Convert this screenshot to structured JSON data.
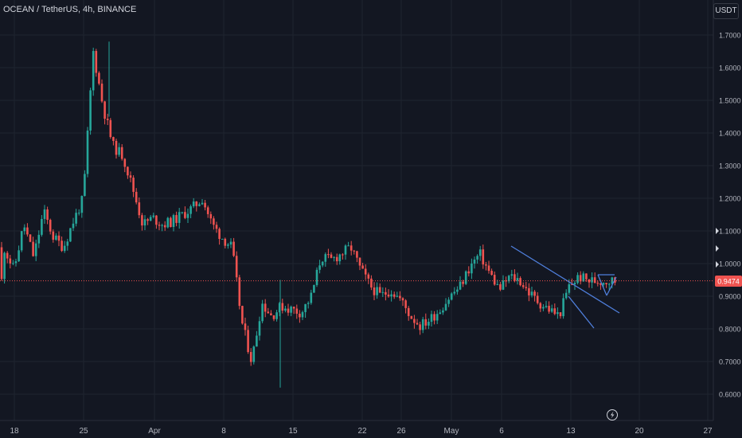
{
  "header": {
    "title": "OCEAN / TetherUS, 4h, BINANCE"
  },
  "currency_button": "USDT",
  "price_label": "0.9474",
  "colors": {
    "up": "#26a69a",
    "down": "#ef5350",
    "trendline": "#4f7fdc",
    "price_line": "#ef5350",
    "grid": "#1f2430"
  },
  "chart_data": {
    "type": "candlestick",
    "title": "OCEAN / TetherUS, 4h, BINANCE",
    "xlabel": "",
    "ylabel": "",
    "ylim": [
      0.55,
      1.78
    ],
    "y_ticks": [
      "0.6000",
      "0.7000",
      "0.8000",
      "0.9000",
      "1.0000",
      "1.1000",
      "1.2000",
      "1.3000",
      "1.4000",
      "1.5000",
      "1.6000",
      "1.7000"
    ],
    "x_ticks": [
      "18",
      "25",
      "Apr",
      "8",
      "15",
      "22",
      "26",
      "May",
      "6",
      "13",
      "20",
      "27"
    ],
    "last_price": 0.9474,
    "price_path": [
      [
        "Mar 18",
        1.05
      ],
      [
        "Mar 19",
        0.98
      ],
      [
        "Mar 20",
        1.12
      ],
      [
        "Mar 21",
        1.02
      ],
      [
        "Mar 22",
        1.16
      ],
      [
        "Mar 23",
        1.08
      ],
      [
        "Mar 24",
        1.05
      ],
      [
        "Mar 25",
        1.13
      ],
      [
        "Mar 26",
        1.2
      ],
      [
        "Mar 27",
        1.65
      ],
      [
        "Mar 28",
        1.48
      ],
      [
        "Mar 29",
        1.36
      ],
      [
        "Mar 30",
        1.33
      ],
      [
        "Apr 1",
        1.23
      ],
      [
        "Apr 2",
        1.12
      ],
      [
        "Apr 3",
        1.14
      ],
      [
        "Apr 4",
        1.12
      ],
      [
        "Apr 5",
        1.13
      ],
      [
        "Apr 6",
        1.15
      ],
      [
        "Apr 7",
        1.17
      ],
      [
        "Apr 8",
        1.2
      ],
      [
        "Apr 9",
        1.12
      ],
      [
        "Apr 10",
        1.08
      ],
      [
        "Apr 11",
        1.05
      ],
      [
        "Apr 12",
        0.82
      ],
      [
        "Apr 13",
        0.7
      ],
      [
        "Apr 14",
        0.88
      ],
      [
        "Apr 15",
        0.84
      ],
      [
        "Apr 16",
        0.87
      ],
      [
        "Apr 17",
        0.86
      ],
      [
        "Apr 18",
        0.85
      ],
      [
        "Apr 19",
        0.9
      ],
      [
        "Apr 20",
        1.02
      ],
      [
        "Apr 21",
        1.01
      ],
      [
        "Apr 22",
        1.03
      ],
      [
        "Apr 23",
        1.05
      ],
      [
        "Apr 24",
        0.98
      ],
      [
        "Apr 25",
        0.93
      ],
      [
        "Apr 26",
        0.9
      ],
      [
        "Apr 27",
        0.92
      ],
      [
        "Apr 28",
        0.89
      ],
      [
        "Apr 29",
        0.84
      ],
      [
        "Apr 30",
        0.81
      ],
      [
        "May 1",
        0.83
      ],
      [
        "May 2",
        0.86
      ],
      [
        "May 3",
        0.9
      ],
      [
        "May 4",
        0.93
      ],
      [
        "May 5",
        0.99
      ],
      [
        "May 6",
        1.03
      ],
      [
        "May 7",
        0.97
      ],
      [
        "May 8",
        0.92
      ],
      [
        "May 9",
        0.96
      ],
      [
        "May 10",
        0.95
      ],
      [
        "May 11",
        0.91
      ],
      [
        "May 12",
        0.88
      ],
      [
        "May 13",
        0.86
      ],
      [
        "May 14",
        0.84
      ],
      [
        "May 15",
        0.93
      ],
      [
        "May 16",
        0.96
      ],
      [
        "May 17",
        0.9474
      ]
    ]
  }
}
